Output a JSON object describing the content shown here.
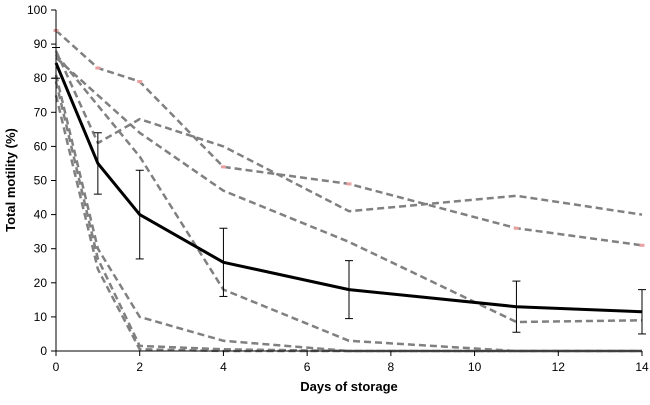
{
  "chart_data": {
    "type": "line",
    "title": "",
    "xlabel": "Days of storage",
    "ylabel": "Total motility (%)",
    "xlim": [
      0,
      14
    ],
    "ylim": [
      0,
      100
    ],
    "xticks": [
      0,
      2,
      4,
      6,
      8,
      10,
      12,
      14
    ],
    "yticks": [
      0,
      10,
      20,
      30,
      40,
      50,
      60,
      70,
      80,
      90,
      100
    ],
    "grid": false,
    "legend": "none",
    "series": [
      {
        "style": "dashed",
        "color": "#808080",
        "marker_color": "#e8a0a0",
        "points": [
          [
            0,
            94
          ],
          [
            1,
            83
          ],
          [
            2,
            79
          ],
          [
            4,
            54
          ],
          [
            7,
            49
          ],
          [
            11,
            36
          ],
          [
            14,
            31
          ]
        ]
      },
      {
        "style": "dashed",
        "color": "#808080",
        "points": [
          [
            0,
            88
          ],
          [
            1,
            61
          ],
          [
            2,
            68
          ],
          [
            4,
            60
          ],
          [
            7,
            41
          ],
          [
            11,
            45.5
          ],
          [
            14,
            40
          ]
        ]
      },
      {
        "style": "dashed",
        "color": "#808080",
        "points": [
          [
            0,
            86
          ],
          [
            2,
            64
          ],
          [
            4,
            47
          ],
          [
            7,
            32
          ],
          [
            11,
            8.5
          ],
          [
            14,
            9
          ]
        ]
      },
      {
        "style": "dashed",
        "color": "#808080",
        "points": [
          [
            0,
            87
          ],
          [
            2,
            57
          ],
          [
            4,
            18
          ],
          [
            7,
            3
          ],
          [
            11,
            0
          ],
          [
            14,
            0
          ]
        ]
      },
      {
        "style": "dashed",
        "color": "#808080",
        "points": [
          [
            0,
            81
          ],
          [
            1,
            30
          ],
          [
            2,
            10
          ],
          [
            4,
            3
          ],
          [
            7,
            0
          ],
          [
            11,
            0
          ],
          [
            14,
            0
          ]
        ]
      },
      {
        "style": "dashed",
        "color": "#808080",
        "points": [
          [
            0,
            79
          ],
          [
            1,
            27
          ],
          [
            2,
            1.5
          ],
          [
            4,
            0.5
          ],
          [
            7,
            0
          ],
          [
            14,
            0
          ]
        ]
      },
      {
        "style": "dashed",
        "color": "#808080",
        "points": [
          [
            0,
            75
          ],
          [
            1,
            24
          ],
          [
            2,
            0.5
          ],
          [
            4,
            0
          ],
          [
            7,
            0
          ],
          [
            14,
            0
          ]
        ]
      },
      {
        "style": "solid",
        "color": "#000000",
        "points": [
          [
            0,
            84.5
          ],
          [
            1,
            55
          ],
          [
            2,
            40
          ],
          [
            4,
            26
          ],
          [
            7,
            18
          ],
          [
            11,
            13
          ],
          [
            14,
            11.5
          ]
        ],
        "error": [
          [
            0,
            4.5
          ],
          [
            1,
            9
          ],
          [
            2,
            13
          ],
          [
            4,
            10
          ],
          [
            7,
            8.5
          ],
          [
            11,
            7.5
          ],
          [
            14,
            6.5
          ]
        ]
      }
    ]
  }
}
